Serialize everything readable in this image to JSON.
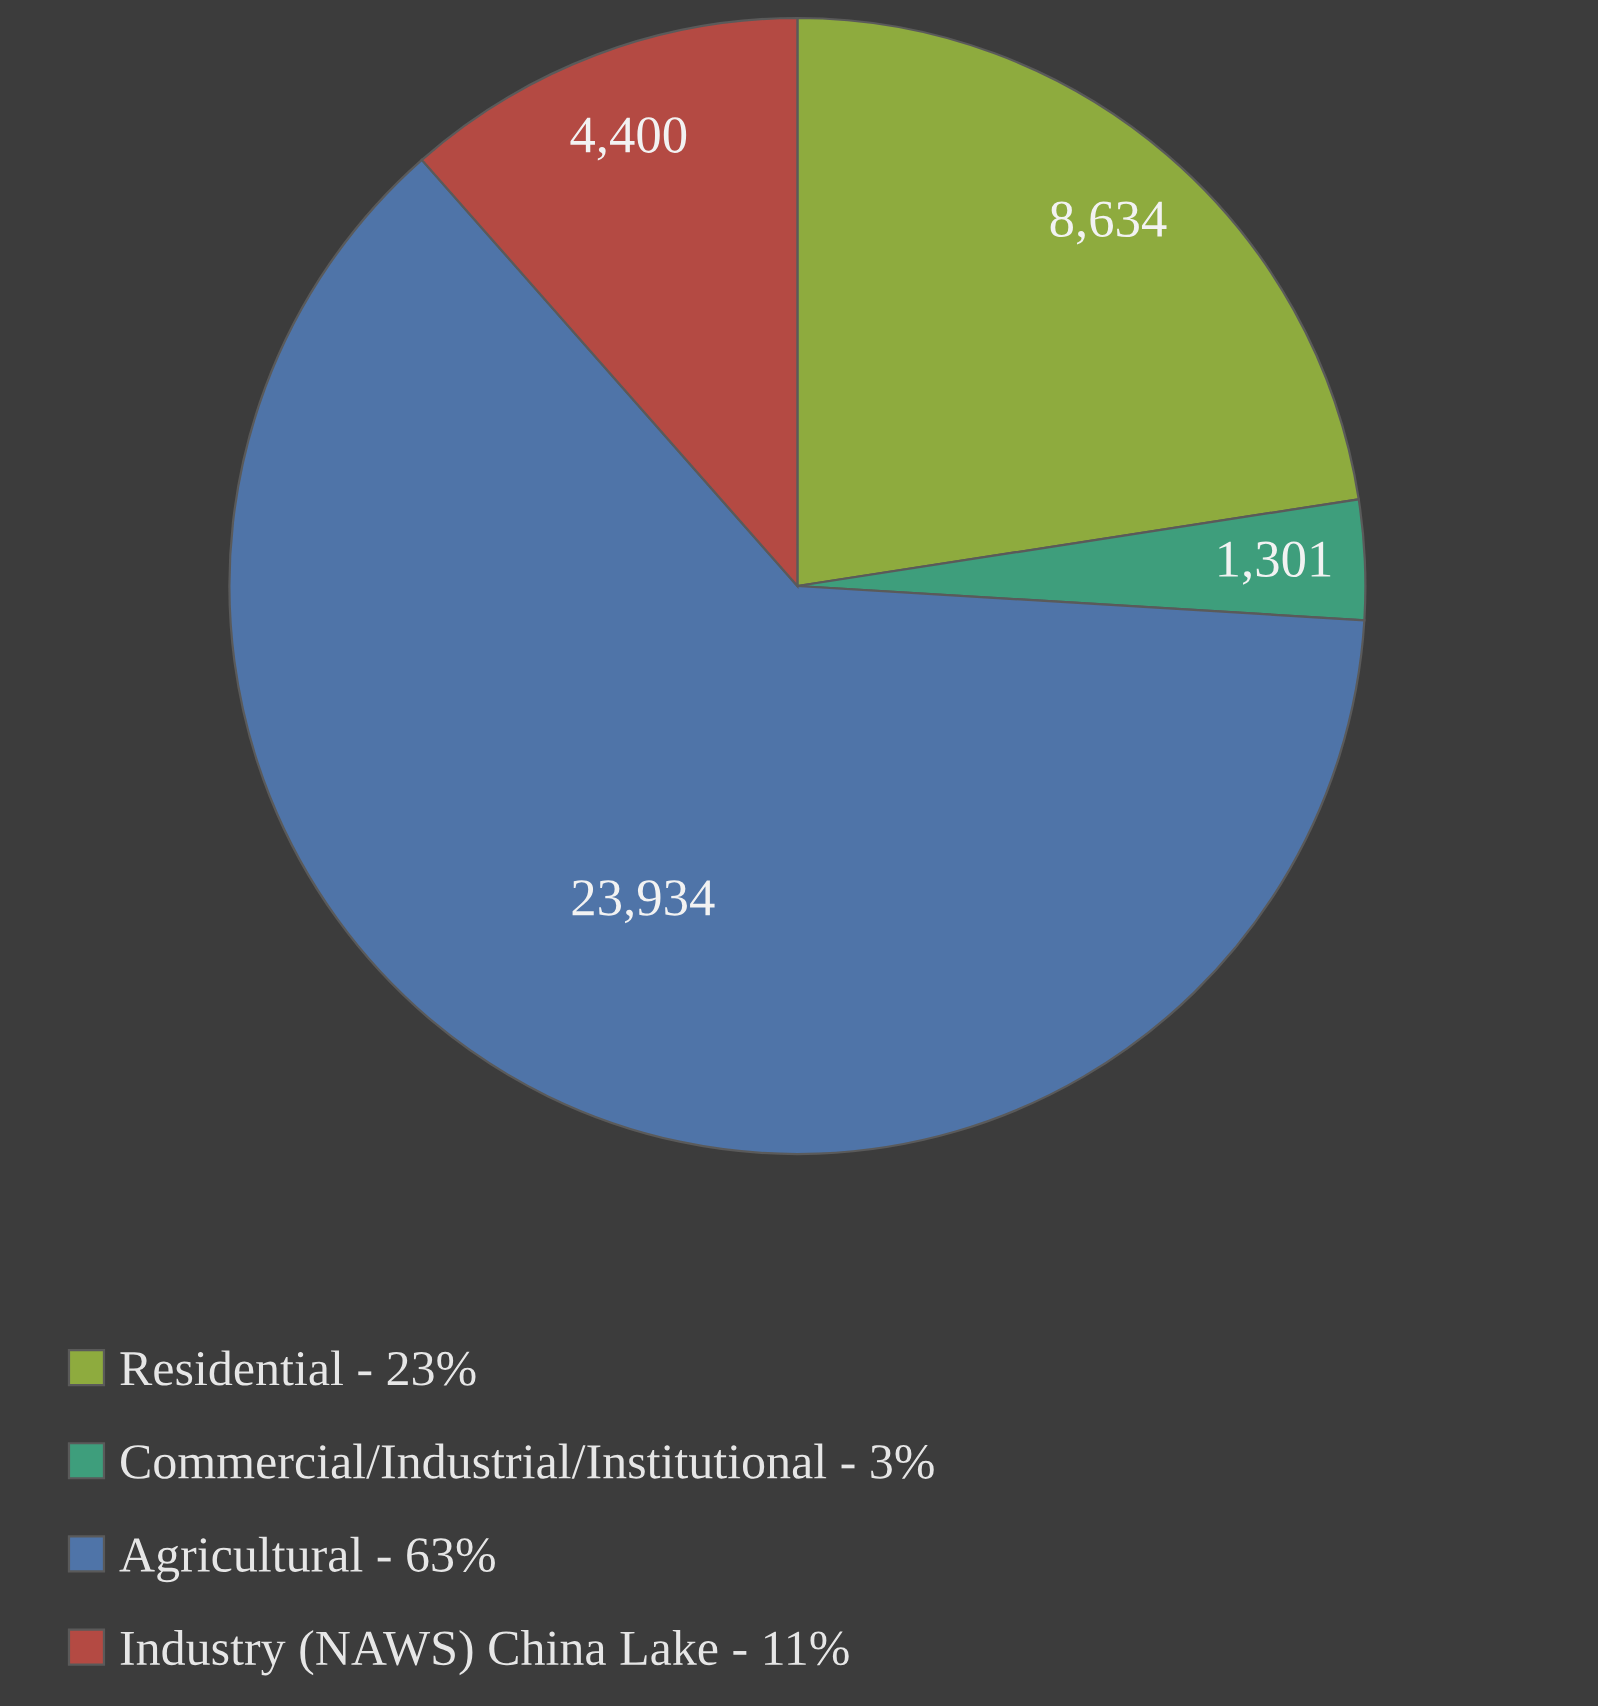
{
  "chart_data": {
    "type": "pie",
    "categories": [
      "Residential - 23%",
      "Commercial/Industrial/Institutional - 3%",
      "Agricultural - 63%",
      "Industry (NAWS) China Lake - 11%"
    ],
    "values": [
      8634,
      1301,
      23934,
      4400
    ],
    "value_labels": [
      "8,634",
      "1,301",
      "23,934",
      "4,400"
    ],
    "colors": [
      "#8eab3e",
      "#3e9e7c",
      "#4f74a8",
      "#b44a43"
    ],
    "legend": "bottom"
  }
}
